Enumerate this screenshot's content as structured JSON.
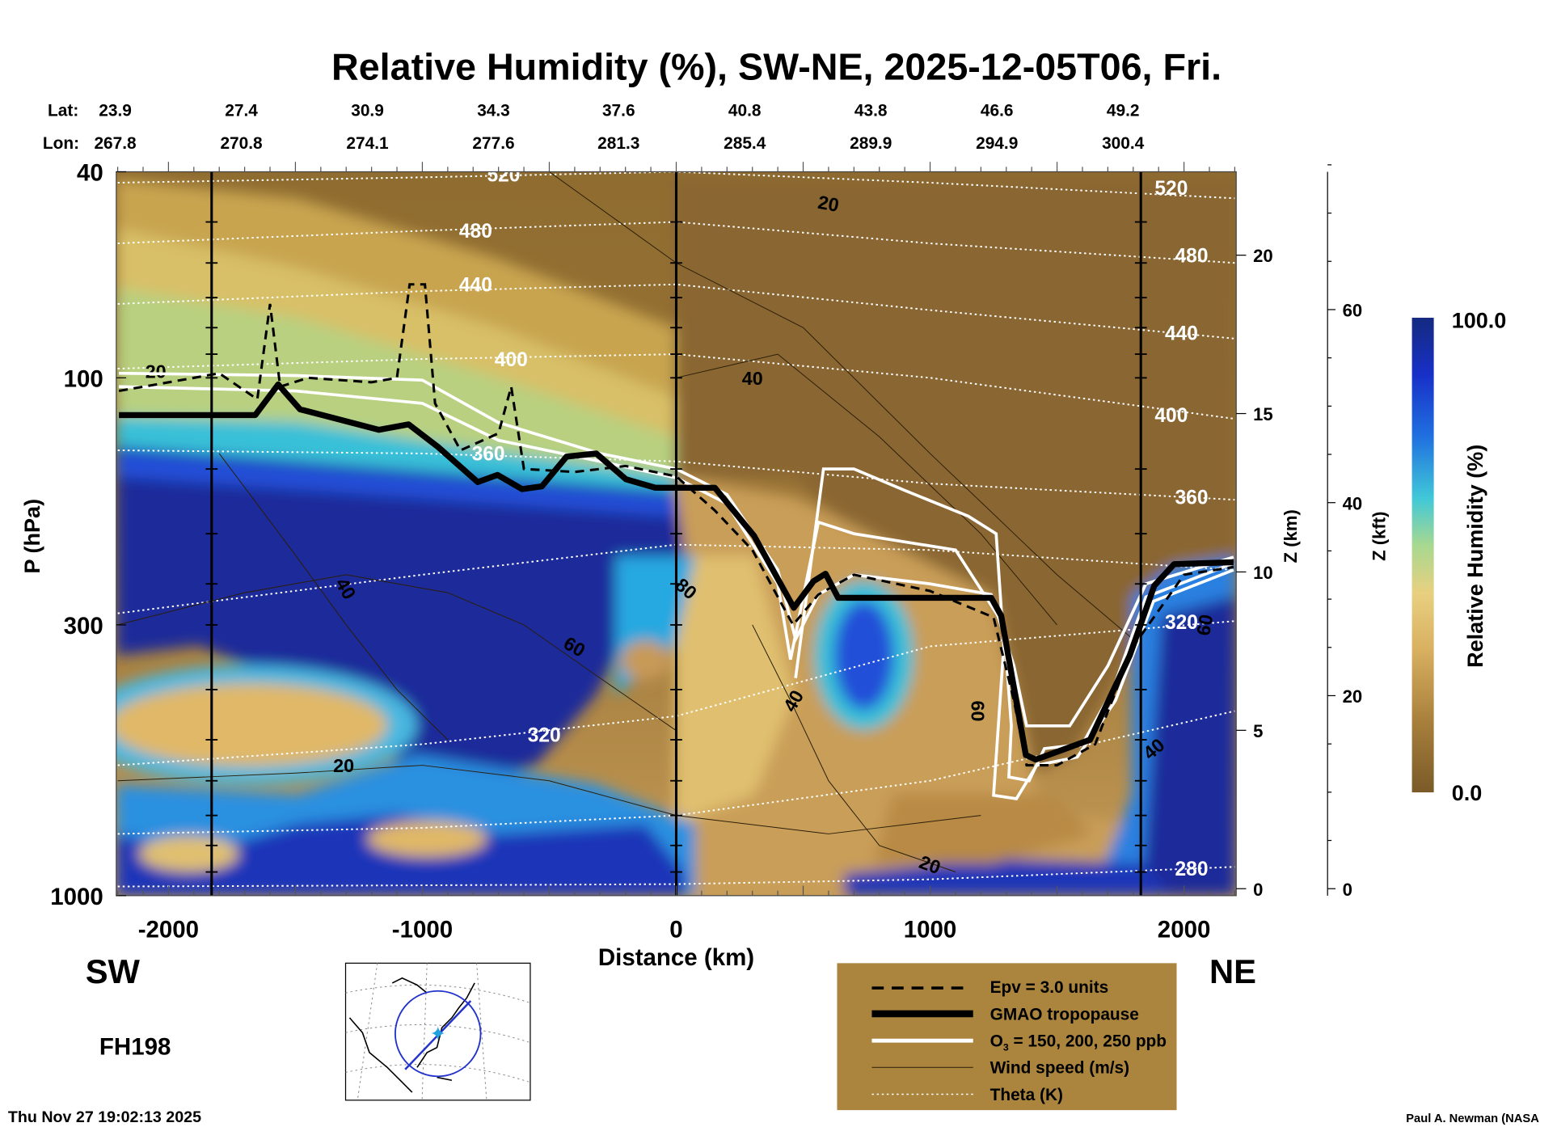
{
  "title": "Relative Humidity (%), SW-NE, 2025-12-05T06, Fri.",
  "lat_label": "Lat:",
  "lon_label": "Lon:",
  "lats": [
    "23.9",
    "27.4",
    "30.9",
    "34.3",
    "37.6",
    "40.8",
    "43.8",
    "46.6",
    "49.2"
  ],
  "lons": [
    "267.8",
    "270.8",
    "274.1",
    "277.6",
    "281.3",
    "285.4",
    "289.9",
    "294.9",
    "300.4"
  ],
  "sw": "SW",
  "ne": "NE",
  "forecast_hour": "FH198",
  "timestamp": "Thu Nov 27 19:02:13 2025",
  "credit": "Paul A. Newman (NASA",
  "legend": {
    "items": [
      {
        "label": "Epv = 3.0 units",
        "style": "dashed"
      },
      {
        "label": "GMAO tropopause",
        "style": "thick"
      },
      {
        "label_main": "O",
        "label_sub": "3",
        "label_rest": " = 150, 200, 250 ppb",
        "style": "white"
      },
      {
        "label": "Wind speed (m/s)",
        "style": "thin"
      },
      {
        "label": "Theta (K)",
        "style": "dotted"
      }
    ],
    "bg": "#ab853e"
  },
  "chart_data": {
    "type": "heatmap",
    "title": "Relative Humidity (%), SW-NE, 2025-12-05T06, Fri.",
    "xlabel": "Distance (km)",
    "ylabel": "P (hPa)",
    "xlim": [
      -2200,
      2200
    ],
    "ylim": [
      1000,
      40
    ],
    "yscale": "log",
    "xticks": [
      "-2000",
      "-1000",
      "0",
      "1000",
      "2000"
    ],
    "yticks": [
      "40",
      "100",
      "300",
      "1000"
    ],
    "z_km": {
      "label": "Z (km)",
      "ticks": [
        "0",
        "5",
        "10",
        "15",
        "20"
      ]
    },
    "z_kft": {
      "label": "Z (kft)",
      "ticks": [
        "0",
        "20",
        "40",
        "60"
      ]
    },
    "colorbar": {
      "label": "Relative Humidity (%)",
      "min": "0.0",
      "max": "100.0",
      "colors": [
        "#7a5a28",
        "#a8803c",
        "#d8b060",
        "#e8d080",
        "#a8d890",
        "#40c8d8",
        "#2070e0",
        "#1830c8",
        "#142a80"
      ]
    },
    "section_markers_km": [
      -1830,
      0,
      1830
    ],
    "tropopause": [
      [
        -2195,
        118
      ],
      [
        -1658,
        118
      ],
      [
        -1568,
        103
      ],
      [
        -1482,
        115
      ],
      [
        -1366,
        119
      ],
      [
        -1171,
        126
      ],
      [
        -1054,
        123
      ],
      [
        -938,
        136
      ],
      [
        -782,
        159
      ],
      [
        -704,
        154
      ],
      [
        -607,
        164
      ],
      [
        -529,
        162
      ],
      [
        -432,
        142
      ],
      [
        -315,
        140
      ],
      [
        -198,
        157
      ],
      [
        -82,
        163
      ],
      [
        152,
        163
      ],
      [
        307,
        202
      ],
      [
        463,
        278
      ],
      [
        541,
        247
      ],
      [
        588,
        239
      ],
      [
        638,
        266
      ],
      [
        1241,
        266
      ],
      [
        1280,
        288
      ],
      [
        1377,
        535
      ],
      [
        1416,
        546
      ],
      [
        1630,
        500
      ],
      [
        1786,
        344
      ],
      [
        1883,
        252
      ],
      [
        1961,
        229
      ],
      [
        2195,
        227
      ]
    ],
    "epv": [
      [
        -2195,
        106
      ],
      [
        -1950,
        101
      ],
      [
        -1800,
        98
      ],
      [
        -1650,
        110
      ],
      [
        -1600,
        72
      ],
      [
        -1560,
        104
      ],
      [
        -1450,
        100
      ],
      [
        -1200,
        102
      ],
      [
        -1100,
        100
      ],
      [
        -1050,
        66
      ],
      [
        -990,
        66
      ],
      [
        -950,
        112
      ],
      [
        -850,
        138
      ],
      [
        -700,
        128
      ],
      [
        -650,
        104
      ],
      [
        -600,
        150
      ],
      [
        -400,
        152
      ],
      [
        -200,
        148
      ],
      [
        0,
        155
      ],
      [
        150,
        180
      ],
      [
        300,
        215
      ],
      [
        460,
        300
      ],
      [
        560,
        262
      ],
      [
        700,
        240
      ],
      [
        1000,
        258
      ],
      [
        1250,
        290
      ],
      [
        1330,
        420
      ],
      [
        1380,
        560
      ],
      [
        1500,
        560
      ],
      [
        1650,
        510
      ],
      [
        1800,
        330
      ],
      [
        2000,
        240
      ],
      [
        2195,
        232
      ]
    ],
    "o3": [
      [
        [
          -2195,
          98
        ],
        [
          -1500,
          99
        ],
        [
          -1000,
          101
        ],
        [
          -700,
          122
        ],
        [
          -300,
          140
        ],
        [
          0,
          150
        ],
        [
          200,
          168
        ],
        [
          400,
          235
        ],
        [
          470,
          320
        ],
        [
          560,
          262
        ],
        [
          700,
          240
        ],
        [
          1000,
          250
        ],
        [
          1240,
          262
        ],
        [
          1330,
          360
        ],
        [
          1380,
          470
        ],
        [
          1550,
          470
        ],
        [
          1700,
          360
        ],
        [
          1850,
          250
        ],
        [
          2195,
          222
        ]
      ],
      [
        [
          -2195,
          104
        ],
        [
          -1500,
          106
        ],
        [
          -1000,
          112
        ],
        [
          -700,
          132
        ],
        [
          -300,
          145
        ],
        [
          0,
          156
        ],
        [
          200,
          175
        ],
        [
          400,
          250
        ],
        [
          450,
          350
        ],
        [
          560,
          190
        ],
        [
          700,
          200
        ],
        [
          1100,
          215
        ],
        [
          1290,
          300
        ],
        [
          1320,
          470
        ],
        [
          1310,
          590
        ],
        [
          1390,
          600
        ],
        [
          1450,
          520
        ],
        [
          1600,
          510
        ],
        [
          1720,
          400
        ],
        [
          1850,
          265
        ],
        [
          2195,
          228
        ]
      ],
      [
        [
          470,
          380
        ],
        [
          580,
          150
        ],
        [
          700,
          150
        ],
        [
          900,
          165
        ],
        [
          1150,
          185
        ],
        [
          1260,
          200
        ],
        [
          1290,
          330
        ],
        [
          1250,
          640
        ],
        [
          1340,
          650
        ],
        [
          1420,
          560
        ],
        [
          1580,
          540
        ],
        [
          1730,
          420
        ],
        [
          1880,
          270
        ],
        [
          2195,
          235
        ]
      ]
    ],
    "theta": [
      {
        "level": "520",
        "x": [
          -2200,
          -1000,
          0,
          1000,
          2200
        ],
        "p": [
          42,
          41,
          40,
          42,
          45
        ],
        "label_at": [
          [
            -680,
            40.5
          ],
          [
            1950,
            43
          ]
        ]
      },
      {
        "level": "480",
        "x": [
          -2200,
          -1000,
          0,
          1000,
          2200
        ],
        "p": [
          55,
          52,
          50,
          55,
          60
        ],
        "label_at": [
          [
            -790,
            52
          ],
          [
            2030,
            58
          ]
        ]
      },
      {
        "level": "440",
        "x": [
          -2200,
          -1000,
          0,
          1000,
          2200
        ],
        "p": [
          72,
          68,
          66,
          74,
          84
        ],
        "label_at": [
          [
            -790,
            66
          ],
          [
            1990,
            82
          ]
        ]
      },
      {
        "level": "400",
        "x": [
          -2200,
          -1000,
          0,
          1000,
          2200
        ],
        "p": [
          96,
          92,
          90,
          100,
          120
        ],
        "label_at": [
          [
            -650,
            92
          ],
          [
            1950,
            118
          ]
        ]
      },
      {
        "level": "360",
        "x": [
          -2200,
          -1000,
          0,
          1000,
          2200
        ],
        "p": [
          138,
          140,
          145,
          160,
          172
        ],
        "label_at": [
          [
            -740,
            140
          ],
          [
            2030,
            170
          ]
        ]
      },
      {
        "level": "340",
        "x": [
          -2200,
          -1000,
          0,
          1000,
          2200
        ],
        "p": [
          285,
          240,
          210,
          215,
          235
        ],
        "label_at": []
      },
      {
        "level": "320",
        "x": [
          -2200,
          -1000,
          0,
          1000,
          2200
        ],
        "p": [
          560,
          510,
          450,
          330,
          295
        ],
        "label_at": [
          [
            -520,
            489
          ],
          [
            1990,
            296
          ]
        ]
      },
      {
        "level": "300",
        "x": [
          -2200,
          -1000,
          0,
          1000,
          2200
        ],
        "p": [
          760,
          740,
          700,
          600,
          440
        ],
        "label_at": []
      },
      {
        "level": "280",
        "x": [
          -2200,
          -1000,
          0,
          1000,
          2200
        ],
        "p": [
          960,
          955,
          950,
          930,
          880
        ],
        "label_at": [
          [
            2030,
            887
          ]
        ]
      }
    ],
    "wind_speed_labels": [
      {
        "value": "20",
        "x": -2050,
        "p": 97
      },
      {
        "value": "40",
        "x": -1300,
        "p": 255,
        "rot": 60
      },
      {
        "value": "60",
        "x": -400,
        "p": 330,
        "rot": 30
      },
      {
        "value": "80",
        "x": 40,
        "p": 255,
        "rot": 40
      },
      {
        "value": "20",
        "x": -1310,
        "p": 560
      },
      {
        "value": "40",
        "x": 300,
        "p": 100
      },
      {
        "value": "20",
        "x": 600,
        "p": 46,
        "rot": 10
      },
      {
        "value": "40",
        "x": 460,
        "p": 420,
        "rot": -60
      },
      {
        "value": "60",
        "x": 1190,
        "p": 440,
        "rot": 90
      },
      {
        "value": "20",
        "x": 1000,
        "p": 870,
        "rot": 20
      },
      {
        "value": "40",
        "x": 1880,
        "p": 520,
        "rot": -40
      },
      {
        "value": "60",
        "x": 2080,
        "p": 300,
        "rot": -80
      }
    ]
  }
}
